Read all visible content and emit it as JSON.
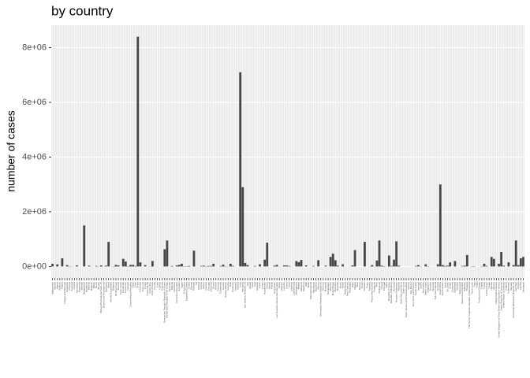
{
  "chart_data": {
    "type": "bar",
    "title": "by country",
    "y_label": "number of cases",
    "categories": [
      "Afghanistan",
      "Albania",
      "Algeria",
      "Andorra",
      "Angola",
      "Antigua and Barbuda",
      "Argentina",
      "Armenia",
      "Australia",
      "Austria",
      "Azerbaijan",
      "Bahamas",
      "Bahrain",
      "Bangladesh",
      "Barbados",
      "Belarus",
      "Belgium",
      "Belize",
      "Benin",
      "Bhutan",
      "Bolivia (Plurinational State of)",
      "Bosnia and Herzegovina",
      "Botswana",
      "Brazil",
      "Brunei Darussalam",
      "Bulgaria",
      "Burkina Faso",
      "Burundi",
      "Cabo Verde",
      "Cambodia",
      "Cameroon",
      "Canada",
      "Central African Republic",
      "Chad",
      "Chile",
      "China",
      "Colombia",
      "Comoros",
      "Congo",
      "Cook Islands",
      "Costa Rica",
      "Côte d'Ivoire",
      "Croatia",
      "Cuba",
      "Cyprus",
      "Czechia",
      "Democratic People's Republic of Korea",
      "Democratic Republic of the Congo",
      "Denmark",
      "Djibouti",
      "Dominica",
      "Dominican Republic",
      "Ecuador",
      "Egypt",
      "El Salvador",
      "Equatorial Guinea",
      "Eritrea",
      "Estonia",
      "Ethiopia",
      "Fiji",
      "Finland",
      "France",
      "Gabon",
      "Gambia",
      "Georgia",
      "Germany",
      "Ghana",
      "Greece",
      "Grenada",
      "Guatemala",
      "Guinea",
      "Guinea-Bissau",
      "Guyana",
      "Haiti",
      "Honduras",
      "Hungary",
      "Iceland",
      "India",
      "Indonesia",
      "Iran (Islamic Republic of)",
      "Iraq",
      "Ireland",
      "Israel",
      "Italy",
      "Jamaica",
      "Japan",
      "Jordan",
      "Kazakhstan",
      "Kenya",
      "Kiribati",
      "Kuwait",
      "Kyrgyzstan",
      "Lao People's Democratic Republic",
      "Latvia",
      "Lebanon",
      "Lesotho",
      "Liberia",
      "Libya",
      "Lithuania",
      "Luxembourg",
      "Madagascar",
      "Malawi",
      "Malaysia",
      "Maldives",
      "Mali",
      "Malta",
      "Marshall Islands",
      "Mauritania",
      "Mauritius",
      "Mexico",
      "Micronesia (Federated States of)",
      "Monaco",
      "Mongolia",
      "Montenegro",
      "Morocco",
      "Mozambique",
      "Myanmar",
      "Namibia",
      "Nauru",
      "Nepal",
      "Netherlands",
      "New Zealand",
      "Nicaragua",
      "Niger",
      "Nigeria",
      "Niue",
      "Norway",
      "Oman",
      "Pakistan",
      "Palau",
      "Panama",
      "Papua New Guinea",
      "Paraguay",
      "Peru",
      "Philippines",
      "Poland",
      "Portugal",
      "Qatar",
      "Republic of Korea",
      "Republic of Moldova",
      "Romania",
      "Russian Federation",
      "Rwanda",
      "Saint Kitts and Nevis",
      "Saint Lucia",
      "Saint Vincent and the Grenadines",
      "Samoa",
      "San Marino",
      "Sao Tome and Principe",
      "Saudi Arabia",
      "Senegal",
      "Serbia",
      "Seychelles",
      "Sierra Leone",
      "Singapore",
      "Slovakia",
      "Slovenia",
      "Solomon Islands",
      "Somalia",
      "South Africa",
      "South Sudan",
      "Spain",
      "Sri Lanka",
      "Sudan",
      "Suriname",
      "Swaziland",
      "Sweden",
      "Switzerland",
      "Syrian Arab Republic",
      "Tajikistan",
      "Thailand",
      "The former Yugoslav Republic of Macedonia",
      "Timor-Leste",
      "Togo",
      "Tonga",
      "Trinidad and Tobago",
      "Tunisia",
      "Turkey",
      "Turkmenistan",
      "Tuvalu",
      "Uganda",
      "Ukraine",
      "United Arab Emirates",
      "United Kingdom of Great Britain and Northern Ireland",
      "United Republic of Tanzania",
      "United States of America",
      "Uruguay",
      "Uzbekistan",
      "Vanuatu",
      "Venezuela (Bolivarian Republic of)",
      "Viet Nam",
      "Yemen",
      "Zambia",
      "Zimbabwe"
    ],
    "values": [
      100000,
      2000,
      80000,
      100,
      300000,
      100,
      50000,
      10000,
      5000,
      2000,
      40000,
      500,
      2000,
      1500000,
      100,
      30000,
      5000,
      500,
      20000,
      5000,
      40000,
      5000,
      30000,
      900000,
      2000,
      10000,
      60000,
      40000,
      1000,
      280000,
      180000,
      10000,
      60000,
      60000,
      20000,
      8400000,
      150000,
      1000,
      50000,
      10,
      5000,
      200000,
      3000,
      5000,
      500,
      3000,
      630000,
      950000,
      2000,
      20000,
      50,
      40000,
      60000,
      100000,
      10000,
      10000,
      20000,
      1000,
      580000,
      2000,
      1000,
      20000,
      30000,
      10000,
      20000,
      20000,
      100000,
      2000,
      50,
      20000,
      70000,
      10000,
      5000,
      100000,
      20000,
      3000,
      50,
      7100000,
      2900000,
      130000,
      50000,
      2000,
      2000,
      20000,
      500,
      80000,
      2000,
      250000,
      870000,
      2000,
      2000,
      30000,
      60000,
      3000,
      2000,
      40000,
      40000,
      20000,
      5000,
      100,
      200000,
      160000,
      240000,
      500,
      40000,
      200,
      1000,
      20000,
      500,
      230000,
      500,
      10,
      30000,
      500,
      350000,
      470000,
      230000,
      30000,
      50,
      80000,
      3000,
      1000,
      5000,
      40000,
      600000,
      5,
      1000,
      1000,
      900000,
      50,
      5000,
      50000,
      5000,
      220000,
      950000,
      30000,
      10000,
      2000,
      400000,
      20000,
      250000,
      920000,
      30000,
      10,
      50,
      50,
      50,
      5,
      500,
      20000,
      50000,
      5000,
      50,
      80000,
      10000,
      1000,
      500,
      1000,
      80000,
      3000000,
      50000,
      20000,
      30000,
      150000,
      500,
      200000,
      1000,
      1000,
      20000,
      30000,
      420000,
      500,
      10000,
      10000,
      50,
      500,
      10000,
      100000,
      20000,
      20,
      350000,
      280000,
      1000,
      100000,
      530000,
      30000,
      1000,
      150000,
      200,
      50000,
      950000,
      50000,
      300000,
      350000
    ],
    "color": "#474747",
    "ylim": [
      -420000,
      8820000
    ],
    "yticks": [
      {
        "value": 0,
        "label": "0e+00"
      },
      {
        "value": 2000000,
        "label": "2e+06"
      },
      {
        "value": 4000000,
        "label": "4e+06"
      },
      {
        "value": 6000000,
        "label": "6e+06"
      },
      {
        "value": 8000000,
        "label": "8e+06"
      }
    ],
    "grid": true
  }
}
